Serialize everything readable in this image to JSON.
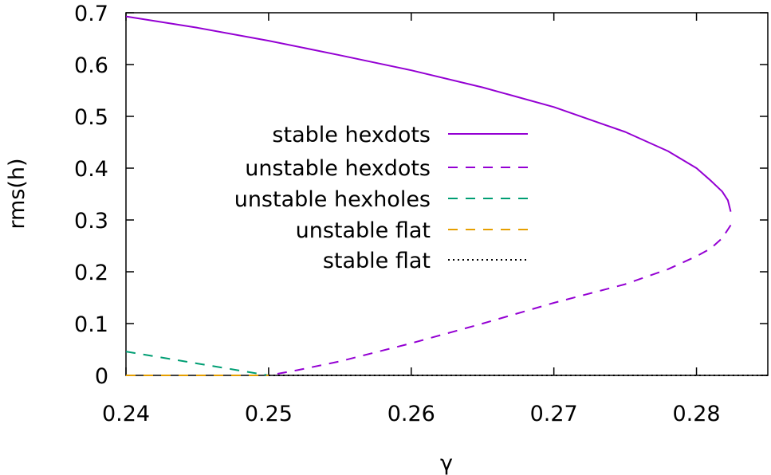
{
  "chart_data": {
    "type": "line",
    "title": "",
    "xlabel": "γ",
    "ylabel": "rms(h)",
    "xlim": [
      0.24,
      0.285
    ],
    "ylim": [
      0,
      0.7
    ],
    "xticks": [
      0.24,
      0.25,
      0.26,
      0.27,
      0.28
    ],
    "xtick_labels": [
      "0.24",
      "0.25",
      "0.26",
      "0.27",
      "0.28"
    ],
    "yticks": [
      0,
      0.1,
      0.2,
      0.3,
      0.4,
      0.5,
      0.6,
      0.7
    ],
    "ytick_labels": [
      "0",
      "0.1",
      "0.2",
      "0.3",
      "0.4",
      "0.5",
      "0.6",
      "0.7"
    ],
    "grid": false,
    "legend_position": "center",
    "series": [
      {
        "name": "stable hexdots",
        "style": "solid",
        "color": "#9400d3",
        "x": [
          0.24,
          0.245,
          0.25,
          0.255,
          0.26,
          0.265,
          0.27,
          0.275,
          0.278,
          0.28,
          0.281,
          0.2818,
          0.2822,
          0.2824
        ],
        "y": [
          0.693,
          0.671,
          0.646,
          0.618,
          0.589,
          0.556,
          0.518,
          0.47,
          0.433,
          0.4,
          0.376,
          0.355,
          0.338,
          0.316
        ]
      },
      {
        "name": "unstable hexdots",
        "style": "dashed",
        "color": "#9400d3",
        "x": [
          0.2824,
          0.2818,
          0.281,
          0.28,
          0.278,
          0.275,
          0.27,
          0.265,
          0.26,
          0.255,
          0.252,
          0.25
        ],
        "y": [
          0.29,
          0.265,
          0.245,
          0.23,
          0.205,
          0.176,
          0.14,
          0.1,
          0.062,
          0.027,
          0.01,
          0.0
        ]
      },
      {
        "name": "unstable hexholes",
        "style": "dashed",
        "color": "#009e73",
        "x": [
          0.24,
          0.245,
          0.25
        ],
        "y": [
          0.046,
          0.023,
          0.0
        ]
      },
      {
        "name": "unstable flat",
        "style": "dashed",
        "color": "#e69f00",
        "x": [
          0.24,
          0.25
        ],
        "y": [
          0.0,
          0.0
        ]
      },
      {
        "name": "stable flat",
        "style": "dotted",
        "color": "#000000",
        "x": [
          0.25,
          0.285
        ],
        "y": [
          0.0,
          0.0
        ]
      }
    ]
  }
}
